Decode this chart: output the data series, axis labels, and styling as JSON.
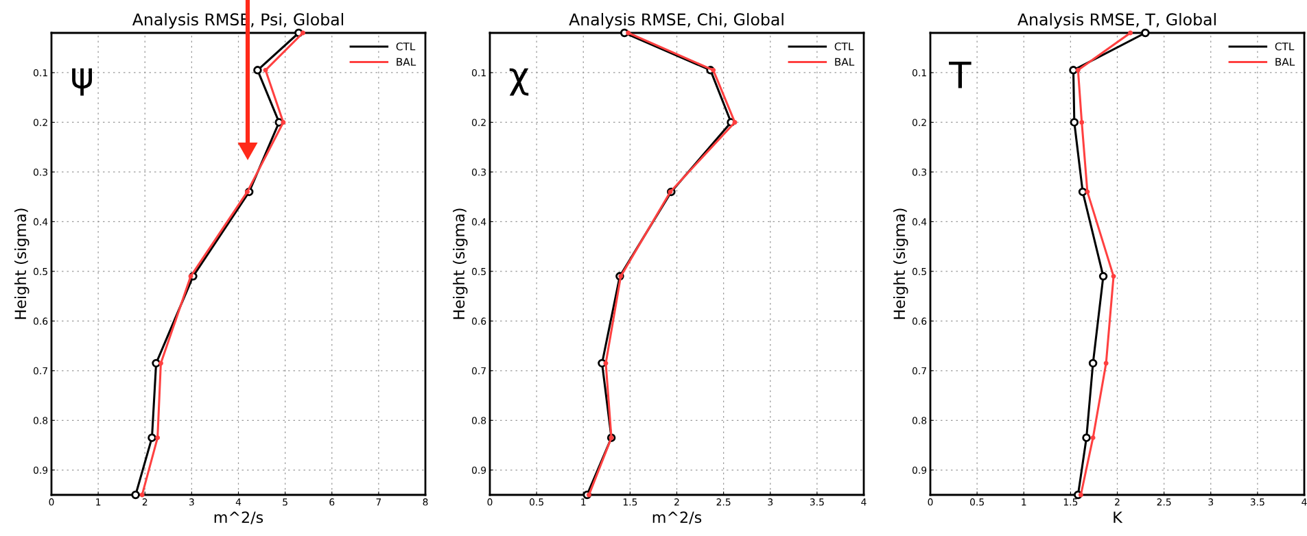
{
  "chart_data": [
    {
      "type": "line",
      "title": "Analysis RMSE, Psi, Global",
      "xlabel": "m^2/s",
      "ylabel": "Height (sigma)",
      "annotations": [
        "ψ"
      ],
      "legend": "top right",
      "grid": true,
      "marker": "circle",
      "xlim": [
        0,
        8
      ],
      "xticks": [
        0,
        1,
        2,
        3,
        4,
        5,
        6,
        7,
        8
      ],
      "ylim": [
        0.95,
        0.02
      ],
      "yticks": [
        0.1,
        0.2,
        0.3,
        0.4,
        0.5,
        0.6,
        0.7,
        0.8,
        0.9
      ],
      "series": [
        {
          "name": "CTL",
          "color": "#000000",
          "x": [
            5.29,
            4.41,
            4.87,
            4.23,
            3.03,
            2.24,
            2.15,
            1.8
          ],
          "values": [
            0.02,
            0.095,
            0.2,
            0.34,
            0.51,
            0.685,
            0.835,
            0.95
          ]
        },
        {
          "name": "BAL",
          "color": "#ff4040",
          "x": [
            5.38,
            4.58,
            4.96,
            4.19,
            2.98,
            2.34,
            2.27,
            1.94
          ],
          "values": [
            0.02,
            0.095,
            0.2,
            0.34,
            0.51,
            0.685,
            0.835,
            0.95
          ]
        }
      ]
    },
    {
      "type": "line",
      "title": "Analysis RMSE, Chi, Global",
      "xlabel": "m^2/s",
      "ylabel": "Height (sigma)",
      "annotations": [
        "χ"
      ],
      "legend": "top right",
      "grid": true,
      "marker": "circle",
      "xlim": [
        0,
        4
      ],
      "xticks": [
        0,
        0.5,
        1,
        1.5,
        2,
        2.5,
        3,
        3.5,
        4
      ],
      "ylim": [
        0.95,
        0.02
      ],
      "yticks": [
        0.1,
        0.2,
        0.3,
        0.4,
        0.5,
        0.6,
        0.7,
        0.8,
        0.9
      ],
      "series": [
        {
          "name": "CTL",
          "color": "#000000",
          "x": [
            1.44,
            2.36,
            2.58,
            1.94,
            1.39,
            1.2,
            1.3,
            1.04
          ],
          "values": [
            0.02,
            0.095,
            0.2,
            0.34,
            0.51,
            0.685,
            0.835,
            0.95
          ]
        },
        {
          "name": "BAL",
          "color": "#ff4040",
          "x": [
            1.48,
            2.39,
            2.62,
            1.93,
            1.4,
            1.24,
            1.3,
            1.06
          ],
          "values": [
            0.02,
            0.095,
            0.2,
            0.34,
            0.51,
            0.685,
            0.835,
            0.95
          ]
        }
      ]
    },
    {
      "type": "line",
      "title": "Analysis RMSE, T, Global",
      "xlabel": "K",
      "ylabel": "Height (sigma)",
      "annotations": [
        "T"
      ],
      "legend": "top right",
      "grid": true,
      "marker": "circle",
      "xlim": [
        0,
        4
      ],
      "xticks": [
        0,
        0.5,
        1,
        1.5,
        2,
        2.5,
        3,
        3.5,
        4
      ],
      "ylim": [
        0.95,
        0.02
      ],
      "yticks": [
        0.1,
        0.2,
        0.3,
        0.4,
        0.5,
        0.6,
        0.7,
        0.8,
        0.9
      ],
      "series": [
        {
          "name": "CTL",
          "color": "#000000",
          "x": [
            2.3,
            1.53,
            1.54,
            1.63,
            1.85,
            1.74,
            1.67,
            1.58
          ],
          "values": [
            0.02,
            0.095,
            0.2,
            0.34,
            0.51,
            0.685,
            0.835,
            0.95
          ]
        },
        {
          "name": "BAL",
          "color": "#ff4040",
          "x": [
            2.14,
            1.58,
            1.62,
            1.68,
            1.96,
            1.88,
            1.74,
            1.61
          ],
          "values": [
            0.02,
            0.095,
            0.2,
            0.34,
            0.51,
            0.685,
            0.835,
            0.95
          ]
        }
      ]
    }
  ]
}
